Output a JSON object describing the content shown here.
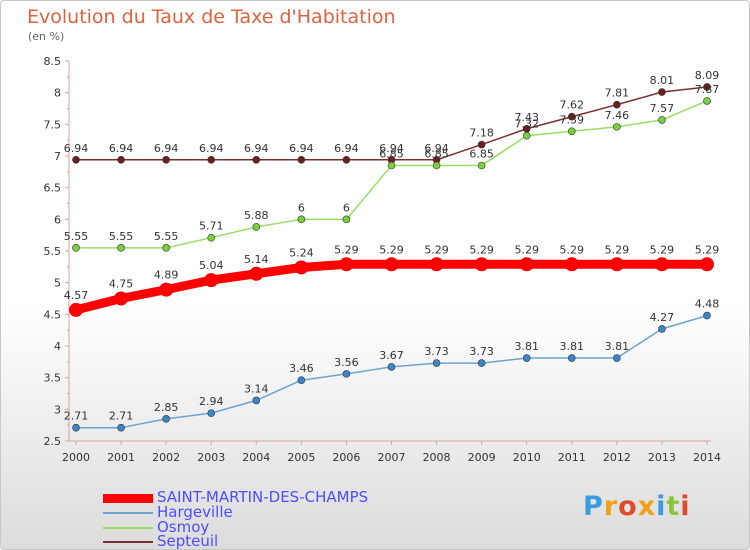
{
  "title": "Evolution du Taux de Taxe d'Habitation",
  "unit_label": "(en %)",
  "brand": {
    "text": "Proxiti",
    "letter_colors": [
      "#3b9be0",
      "#f2a01a",
      "#e04b2c",
      "#f2a01a",
      "#3b9be0",
      "#8fc43a",
      "#e04b2c"
    ]
  },
  "chart_data": {
    "type": "line",
    "title": "Evolution du Taux de Taxe d'Habitation",
    "ylabel": "(en %)",
    "xlabel": "",
    "x": [
      "2000",
      "2001",
      "2002",
      "2003",
      "2004",
      "2005",
      "2006",
      "2007",
      "2008",
      "2009",
      "2010",
      "2011",
      "2012",
      "2013",
      "2014"
    ],
    "ylim": [
      2.5,
      8.5
    ],
    "yticks": [
      "2.5",
      "3",
      "3.5",
      "4",
      "4.5",
      "5",
      "5.5",
      "6",
      "6.5",
      "7",
      "7.5",
      "8",
      "8.5"
    ],
    "grid": false,
    "legend_position": "bottom-left",
    "series": [
      {
        "name": "SAINT-MARTIN-DES-CHAMPS",
        "color": "#ff0000",
        "values": [
          4.57,
          4.75,
          4.89,
          5.04,
          5.14,
          5.24,
          5.29,
          5.29,
          5.29,
          5.29,
          5.29,
          5.29,
          5.29,
          5.29,
          5.29
        ],
        "labels": [
          "4.57",
          "4.75",
          "4.89",
          "5.04",
          "5.14",
          "5.24",
          "5.29",
          "5.29",
          "5.29",
          "5.29",
          "5.29",
          "5.29",
          "5.29",
          "5.29",
          "5.29"
        ]
      },
      {
        "name": "Hargeville",
        "color": "#6fa3cf",
        "values": [
          2.71,
          2.71,
          2.85,
          2.94,
          3.14,
          3.46,
          3.56,
          3.67,
          3.73,
          3.73,
          3.81,
          3.81,
          3.81,
          4.27,
          4.48
        ],
        "labels": [
          "2.71",
          "2.71",
          "2.85",
          "2.94",
          "3.14",
          "3.46",
          "3.56",
          "3.67",
          "3.73",
          "3.73",
          "3.81",
          "3.81",
          "3.81",
          "4.27",
          "4.48"
        ]
      },
      {
        "name": "Osmoy",
        "color": "#99dd66",
        "values": [
          5.55,
          5.55,
          5.55,
          5.71,
          5.88,
          6,
          6,
          6.85,
          6.85,
          6.85,
          7.32,
          7.39,
          7.46,
          7.57,
          7.87
        ],
        "labels": [
          "5.55",
          "5.55",
          "5.55",
          "5.71",
          "5.88",
          "6",
          "6",
          "6.85",
          "6.85",
          "6.85",
          "7.32",
          "7.39",
          "7.46",
          "7.57",
          "7.87"
        ]
      },
      {
        "name": "Septeuil",
        "color": "#7a2f2f",
        "values": [
          6.94,
          6.94,
          6.94,
          6.94,
          6.94,
          6.94,
          6.94,
          6.94,
          6.94,
          7.18,
          7.43,
          7.62,
          7.81,
          8.01,
          8.09
        ],
        "labels": [
          "6.94",
          "6.94",
          "6.94",
          "6.94",
          "6.94",
          "6.94",
          "6.94",
          "6.94",
          "6.94",
          "7.18",
          "7.43",
          "7.62",
          "7.81",
          "8.01",
          "8.09"
        ]
      }
    ]
  }
}
